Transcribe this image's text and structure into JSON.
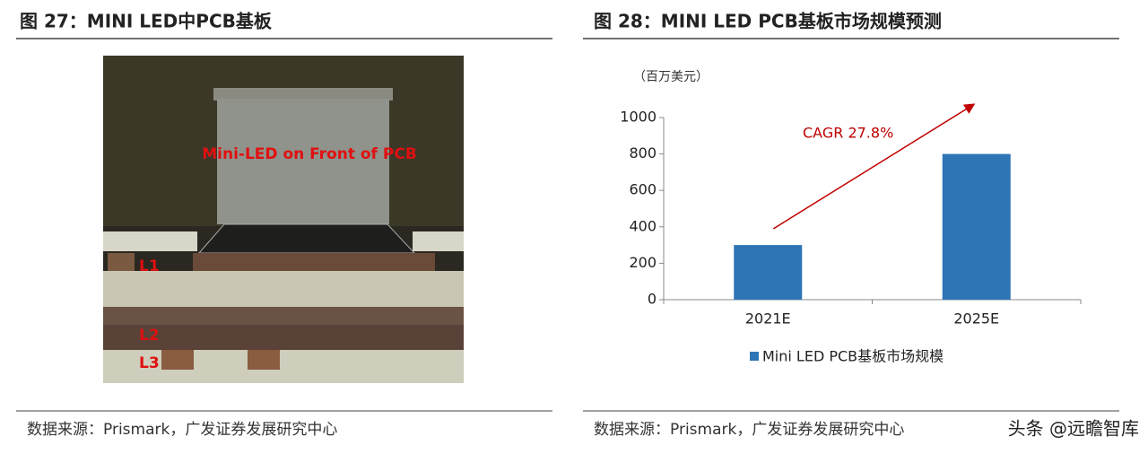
{
  "figure27": {
    "title": "图 27：MINI LED中PCB基板",
    "photo_labels": {
      "component": "Mini-LED on Front of PCB",
      "layer1": "L1",
      "layer2": "L2",
      "layer3": "L3"
    },
    "source": "数据来源：Prismark，广发证券发展研究中心"
  },
  "figure28": {
    "title": "图 28：MINI LED PCB基板市场规模预测",
    "source": "数据来源：Prismark，广发证券发展研究中心"
  },
  "chart_data": {
    "type": "bar",
    "unit": "（百万美元）",
    "categories": [
      "2021E",
      "2025E"
    ],
    "series": [
      {
        "name": "Mini LED PCB基板市场规模",
        "color": "#2e75b6",
        "values": [
          300,
          800
        ]
      }
    ],
    "ylim": [
      0,
      1000
    ],
    "yticks": [
      0,
      200,
      400,
      600,
      800,
      1000
    ],
    "annotation": "CAGR 27.8%",
    "annotation_color": "#c00000"
  },
  "watermark": "头条 @远瞻智库"
}
